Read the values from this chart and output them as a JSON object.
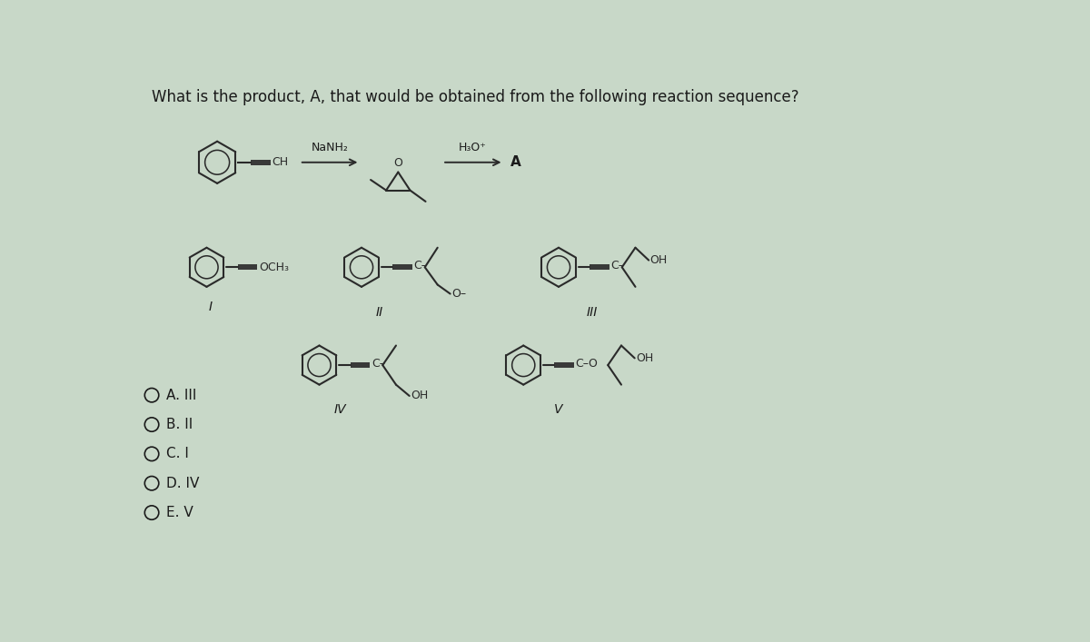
{
  "title": "What is the product, A, that would be obtained from the following reaction sequence?",
  "title_fontsize": 12,
  "bg_color": "#c8d8c8",
  "text_color": "#1a1a1a",
  "mol_color": "#2a2a2a",
  "answer_choices": [
    "A. III",
    "B. II",
    "C. I",
    "D. IV",
    "E. V"
  ],
  "reagent1": "NaNH₂",
  "reagent2": "H₃O⁺",
  "product_label": "A"
}
